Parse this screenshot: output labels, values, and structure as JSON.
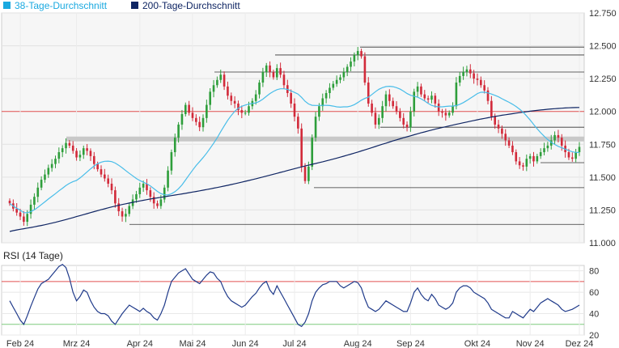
{
  "legend": [
    {
      "label": "38-Tage-Durchschnitt",
      "color": "#1aa9e0"
    },
    {
      "label": "200-Tage-Durchschnitt",
      "color": "#0f2563"
    }
  ],
  "rsi_title": "RSI (14 Tage)",
  "colors": {
    "up": "#2e9e3b",
    "down": "#d22a3a",
    "sma38": "#48bde9",
    "sma200": "#0f2563",
    "rsi": "#1f3a8a",
    "red_line": "#e05050",
    "green_line": "#7ecb7e",
    "support": "#333333",
    "plot_bg": "#f6f6f6"
  },
  "chart_data": [
    {
      "type": "candlestick",
      "title": "",
      "ylim": [
        11000,
        12750
      ],
      "y_ticks": [
        11000,
        11250,
        11500,
        11750,
        12000,
        12250,
        12500,
        12750
      ],
      "y_tick_labels": [
        "11.000",
        "11.250",
        "11.500",
        "11.750",
        "12.000",
        "12.250",
        "12.500",
        "12.750"
      ],
      "x_months": [
        "Feb 24",
        "Mrz 24",
        "Apr 24",
        "Mai 24",
        "Jun 24",
        "Jul 24",
        "Aug 24",
        "Sep 24",
        "Okt 24",
        "Nov 24",
        "Dez 24"
      ],
      "grid": true,
      "closes": [
        11300,
        11260,
        11230,
        11200,
        11160,
        11220,
        11290,
        11350,
        11420,
        11480,
        11520,
        11570,
        11600,
        11640,
        11690,
        11720,
        11760,
        11740,
        11700,
        11650,
        11670,
        11720,
        11700,
        11660,
        11600,
        11560,
        11520,
        11490,
        11450,
        11400,
        11300,
        11240,
        11200,
        11220,
        11280,
        11330,
        11370,
        11420,
        11450,
        11400,
        11350,
        11300,
        11280,
        11330,
        11420,
        11550,
        11690,
        11800,
        11900,
        11980,
        12050,
        11990,
        11950,
        11920,
        11880,
        11950,
        12050,
        12150,
        12200,
        12240,
        12280,
        12190,
        12120,
        12080,
        12060,
        12010,
        11990,
        11990,
        12040,
        12080,
        12130,
        12220,
        12300,
        12350,
        12300,
        12260,
        12330,
        12280,
        12200,
        12140,
        12060,
        11960,
        11870,
        11580,
        11470,
        11580,
        11800,
        11960,
        12040,
        12100,
        12140,
        12180,
        12210,
        12240,
        12260,
        12300,
        12340,
        12380,
        12430,
        12460,
        12420,
        12220,
        12060,
        11990,
        11900,
        11950,
        12040,
        12130,
        12080,
        12040,
        12000,
        11950,
        11900,
        11880,
        12000,
        12150,
        12190,
        12130,
        12100,
        12090,
        12120,
        12060,
        12000,
        11990,
        11970,
        11990,
        12040,
        12220,
        12270,
        12300,
        12320,
        12290,
        12250,
        12240,
        12200,
        12160,
        12080,
        11960,
        11900,
        11870,
        11830,
        11780,
        11740,
        11690,
        11620,
        11590,
        11580,
        11640,
        11660,
        11620,
        11660,
        11690,
        11720,
        11740,
        11780,
        11820,
        11800,
        11740,
        11690,
        11650,
        11640,
        11690,
        11730
      ]
    },
    {
      "type": "line",
      "title": "RSI (14 Tage)",
      "ylim": [
        20,
        85
      ],
      "y_ticks": [
        20,
        40,
        60,
        80
      ],
      "y_tick_labels": [
        "20",
        "40",
        "60",
        "80"
      ],
      "reference_lines": [
        30,
        70
      ],
      "values": [
        52,
        46,
        40,
        34,
        30,
        38,
        47,
        55,
        63,
        68,
        70,
        72,
        76,
        80,
        84,
        86,
        83,
        73,
        60,
        52,
        56,
        62,
        60,
        52,
        46,
        42,
        40,
        40,
        38,
        33,
        30,
        35,
        40,
        44,
        48,
        46,
        44,
        42,
        45,
        42,
        40,
        36,
        34,
        40,
        48,
        60,
        70,
        74,
        78,
        80,
        82,
        77,
        72,
        70,
        68,
        72,
        76,
        79,
        78,
        73,
        70,
        62,
        56,
        52,
        50,
        48,
        46,
        48,
        52,
        56,
        59,
        64,
        68,
        70,
        62,
        58,
        66,
        60,
        54,
        48,
        42,
        36,
        30,
        28,
        32,
        40,
        52,
        60,
        64,
        67,
        68,
        70,
        70,
        70,
        66,
        64,
        66,
        68,
        70,
        69,
        64,
        54,
        46,
        44,
        42,
        44,
        48,
        52,
        50,
        48,
        46,
        44,
        42,
        42,
        50,
        60,
        64,
        58,
        54,
        52,
        58,
        54,
        48,
        46,
        44,
        46,
        50,
        60,
        64,
        66,
        66,
        64,
        60,
        58,
        56,
        54,
        50,
        44,
        42,
        40,
        38,
        36,
        36,
        42,
        40,
        38,
        36,
        40,
        44,
        42,
        46,
        50,
        52,
        54,
        52,
        50,
        48,
        44,
        42,
        43,
        44,
        46,
        48
      ]
    }
  ]
}
